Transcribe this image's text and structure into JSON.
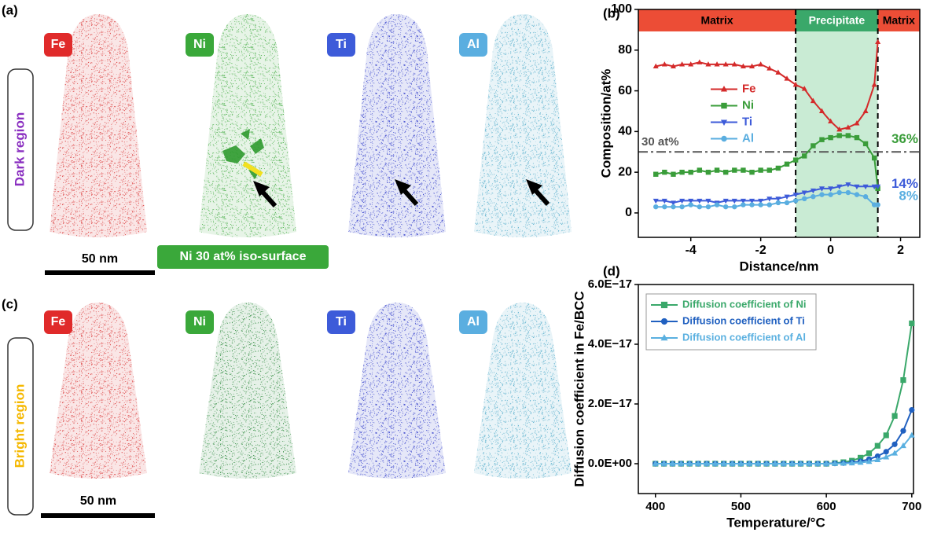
{
  "panels": {
    "a": {
      "label": "(a)",
      "elements": [
        "Fe",
        "Ni",
        "Ti",
        "Al"
      ],
      "region": "Dark region",
      "scale": "50 nm",
      "iso": "Ni 30 at% iso-surface"
    },
    "c": {
      "label": "(c)",
      "elements": [
        "Fe",
        "Ni",
        "Ti",
        "Al"
      ],
      "region": "Bright region",
      "scale": "50 nm"
    }
  },
  "chart_data": [
    {
      "type": "line",
      "panel_label": "(b)",
      "xlabel": "Distance/nm",
      "ylabel": "Composition/at%",
      "x": [
        -5,
        -4.75,
        -4.5,
        -4.25,
        -4,
        -3.75,
        -3.5,
        -3.25,
        -3,
        -2.75,
        -2.5,
        -2.25,
        -2,
        -1.75,
        -1.5,
        -1.25,
        -1,
        -0.75,
        -0.5,
        -0.25,
        0,
        0.25,
        0.5,
        0.75,
        1,
        1.25,
        1.35
      ],
      "series": [
        {
          "name": "Fe",
          "color": "#d42a2a",
          "marker": "triangle-up",
          "values": [
            72,
            73,
            72,
            73,
            73,
            74,
            73,
            73,
            73,
            73,
            72,
            72,
            73,
            71,
            69,
            66,
            63,
            61,
            55,
            50,
            45,
            41,
            42,
            44,
            50,
            63,
            84
          ]
        },
        {
          "name": "Ni",
          "color": "#3a9d3a",
          "marker": "square",
          "values": [
            19,
            20,
            19,
            20,
            20,
            21,
            20,
            21,
            20,
            21,
            21,
            20,
            21,
            21,
            22,
            24,
            26,
            28,
            33,
            36,
            37,
            38,
            38,
            37,
            34,
            27,
            12
          ]
        },
        {
          "name": "Ti",
          "color": "#3d5bd9",
          "marker": "triangle-down",
          "values": [
            6,
            6,
            5,
            6,
            6,
            6,
            6,
            5,
            6,
            6,
            6,
            6,
            6,
            7,
            7,
            8,
            9,
            10,
            11,
            12,
            12,
            13,
            14,
            13,
            13,
            13,
            13
          ]
        },
        {
          "name": "Al",
          "color": "#5aaee0",
          "marker": "circle",
          "values": [
            3,
            3,
            3,
            3,
            4,
            3,
            3,
            4,
            3,
            3,
            4,
            4,
            4,
            4,
            5,
            5,
            6,
            7,
            8,
            9,
            9,
            10,
            10,
            9,
            8,
            4,
            4
          ]
        }
      ],
      "xlim": [
        -5.5,
        2.55
      ],
      "ylim": [
        -12,
        100
      ],
      "xticks": [
        -4,
        -2,
        0,
        2
      ],
      "yticks": [
        0,
        20,
        40,
        60,
        80,
        100
      ],
      "boundaries": [
        -1,
        1.35
      ],
      "region_labels": [
        "Matrix",
        "Precipitate",
        "Matrix"
      ],
      "reference": {
        "value": 30,
        "label": "30 at%"
      },
      "annotations": [
        {
          "value": 36,
          "label": "36%",
          "color": "#3a9d3a"
        },
        {
          "value": 14,
          "label": "14%",
          "color": "#3d5bd9"
        },
        {
          "value": 8,
          "label": "8%",
          "color": "#5aaee0"
        }
      ],
      "legend": "center left"
    },
    {
      "type": "line",
      "panel_label": "(d)",
      "xlabel": "Temperature/°C",
      "ylabel": "Diffusion coefficient in Fe/BCC",
      "x": [
        400,
        410,
        420,
        430,
        440,
        450,
        460,
        470,
        480,
        490,
        500,
        510,
        520,
        530,
        540,
        550,
        560,
        570,
        580,
        590,
        600,
        610,
        620,
        630,
        640,
        650,
        660,
        670,
        680,
        690,
        700
      ],
      "series": [
        {
          "name": "Diffusion coefficient of Ni",
          "color": "#3aa86a",
          "marker": "square",
          "values": [
            0,
            0,
            0,
            0,
            0,
            0,
            0,
            0,
            0,
            0,
            0,
            0,
            0,
            0,
            0,
            0,
            0,
            0,
            0,
            0,
            0,
            2e-19,
            5e-19,
            1e-18,
            2e-18,
            3.5e-18,
            6e-18,
            9.5e-18,
            1.6e-17,
            2.8e-17,
            4.7e-17
          ]
        },
        {
          "name": "Diffusion coefficient of Ti",
          "color": "#2060c0",
          "marker": "circle",
          "values": [
            0,
            0,
            0,
            0,
            0,
            0,
            0,
            0,
            0,
            0,
            0,
            0,
            0,
            0,
            0,
            0,
            0,
            0,
            0,
            0,
            0,
            1e-19,
            2e-19,
            4e-19,
            8e-19,
            1.5e-18,
            2.5e-18,
            4e-18,
            6.5e-18,
            1.1e-17,
            1.8e-17
          ]
        },
        {
          "name": "Diffusion coefficient of Al",
          "color": "#5ab0e0",
          "marker": "triangle-up",
          "values": [
            0,
            0,
            0,
            0,
            0,
            0,
            0,
            0,
            0,
            0,
            0,
            0,
            0,
            0,
            0,
            0,
            0,
            0,
            0,
            0,
            0,
            5e-20,
            1e-19,
            2e-19,
            4e-19,
            7e-19,
            1.3e-18,
            2.2e-18,
            3.5e-18,
            6e-18,
            9.5e-18
          ]
        }
      ],
      "xlim": [
        380,
        702
      ],
      "ylim": [
        -1e-17,
        6e-17
      ],
      "xticks": [
        400,
        500,
        600,
        700
      ],
      "yticks": [
        {
          "value": 0,
          "label": "0.0E+00"
        },
        {
          "value": 2e-17,
          "label": "2.0E−17"
        },
        {
          "value": 4e-17,
          "label": "4.0E−17"
        },
        {
          "value": 6e-17,
          "label": "6.0E−17"
        }
      ],
      "legend": "upper left"
    }
  ]
}
